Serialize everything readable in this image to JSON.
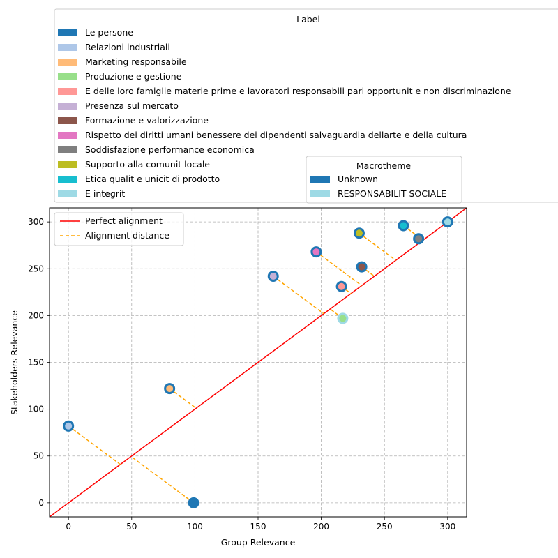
{
  "chart_data": {
    "type": "scatter",
    "title": "",
    "xlabel": "Group Relevance",
    "ylabel": "Stakeholders Relevance",
    "xlim": [
      -15,
      315
    ],
    "ylim": [
      -15,
      315
    ],
    "xticks": [
      0,
      50,
      100,
      150,
      200,
      250,
      300
    ],
    "yticks": [
      0,
      50,
      100,
      150,
      200,
      250,
      300
    ],
    "grid": true,
    "reference_line": {
      "label": "Perfect alignment",
      "color": "#ff0000"
    },
    "distance_lines": {
      "label": "Alignment distance",
      "color": "#ffa500"
    },
    "label_legend": {
      "title": "Label",
      "entries": [
        {
          "name": "Le persone",
          "color": "#1f77b4"
        },
        {
          "name": "Relazioni industriali",
          "color": "#aec7e8"
        },
        {
          "name": "Marketing responsabile",
          "color": "#ffbb78"
        },
        {
          "name": "Produzione e gestione",
          "color": "#98df8a"
        },
        {
          "name": "E delle loro famiglie materie prime e lavoratori responsabili pari opportunit e non discriminazione",
          "color": "#ff9896"
        },
        {
          "name": "Presenza sul mercato",
          "color": "#c5b0d5"
        },
        {
          "name": "Formazione e valorizzazione",
          "color": "#8c564b"
        },
        {
          "name": "Rispetto dei diritti umani benessere dei dipendenti salvaguardia dellarte e della cultura",
          "color": "#e377c2"
        },
        {
          "name": "Soddisfazione performance economica",
          "color": "#7f7f7f"
        },
        {
          "name": "Supporto alla comunit locale",
          "color": "#bcbd22"
        },
        {
          "name": "Etica qualit e unicit di prodotto",
          "color": "#17becf"
        },
        {
          "name": "E integrit",
          "color": "#9edae5"
        }
      ]
    },
    "macrotheme_legend": {
      "title": "Macrotheme",
      "entries": [
        {
          "name": "Unknown",
          "color": "#1f77b4"
        },
        {
          "name": "RESPONSABILIT SOCIALE",
          "color": "#9edae5"
        }
      ]
    },
    "points": [
      {
        "x": 99,
        "y": 0,
        "fill": "#1f77b4",
        "edge": "#1f77b4"
      },
      {
        "x": 0,
        "y": 82,
        "fill": "#aec7e8",
        "edge": "#1f77b4"
      },
      {
        "x": 80,
        "y": 122,
        "fill": "#ffbb78",
        "edge": "#1f77b4"
      },
      {
        "x": 217,
        "y": 197,
        "fill": "#98df8a",
        "edge": "#9edae5"
      },
      {
        "x": 216,
        "y": 231,
        "fill": "#ff9896",
        "edge": "#1f77b4"
      },
      {
        "x": 162,
        "y": 242,
        "fill": "#c5b0d5",
        "edge": "#1f77b4"
      },
      {
        "x": 232,
        "y": 252,
        "fill": "#8c564b",
        "edge": "#1f77b4"
      },
      {
        "x": 196,
        "y": 268,
        "fill": "#e377c2",
        "edge": "#1f77b4"
      },
      {
        "x": 277,
        "y": 282,
        "fill": "#7f7f7f",
        "edge": "#1f77b4"
      },
      {
        "x": 230,
        "y": 288,
        "fill": "#bcbd22",
        "edge": "#1f77b4"
      },
      {
        "x": 265,
        "y": 296,
        "fill": "#17becf",
        "edge": "#1f77b4"
      },
      {
        "x": 300,
        "y": 300,
        "fill": "#9edae5",
        "edge": "#1f77b4"
      }
    ]
  }
}
